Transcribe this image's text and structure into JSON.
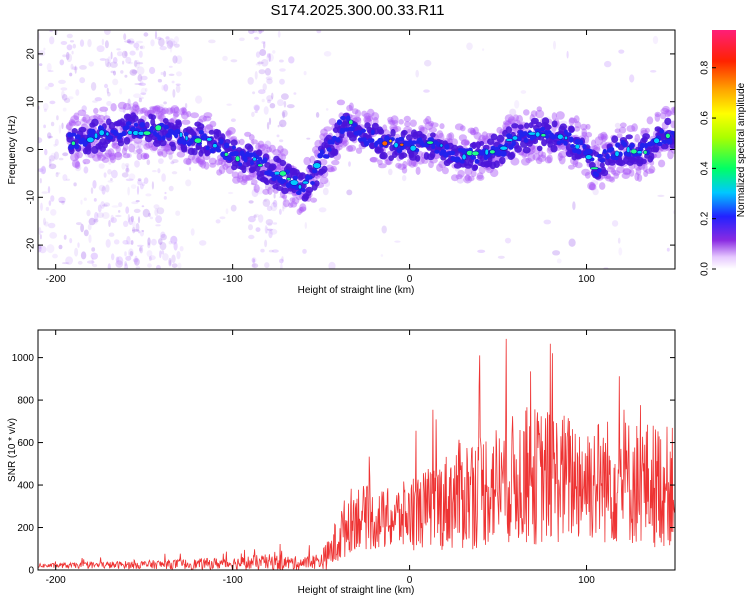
{
  "title": "S174.2025.300.00.33.R11",
  "chart_data": [
    {
      "type": "heatmap",
      "name": "spectrogram",
      "xlabel": "Height of straight line (km)",
      "ylabel": "Frequency (Hz)",
      "xlim": [
        -210,
        150
      ],
      "ylim": [
        -25,
        25
      ],
      "xticks": [
        -200,
        -100,
        0,
        100
      ],
      "yticks": [
        -20,
        -10,
        0,
        10,
        20
      ],
      "ridge": {
        "x": [
          -190,
          -175,
          -160,
          -145,
          -130,
          -115,
          -100,
          -85,
          -70,
          -60,
          -55,
          -50,
          -45,
          -40,
          -35,
          -30,
          -20,
          -10,
          0,
          10,
          20,
          30,
          40,
          50,
          60,
          70,
          80,
          90,
          100,
          105,
          110,
          120,
          130,
          140,
          150
        ],
        "y": [
          2,
          3,
          4,
          4,
          3,
          2,
          -1,
          -3,
          -6,
          -8,
          -6,
          -2,
          0,
          4,
          6,
          4,
          2,
          1,
          1,
          1,
          0,
          -1,
          -1,
          0,
          2,
          3,
          3,
          2,
          0,
          -4,
          -2,
          0,
          -1,
          2,
          4
        ]
      },
      "colorbar": {
        "label": "Normalized spectral amplitude",
        "range": [
          0.0,
          0.95
        ],
        "ticks": [
          "0.0",
          "0.2",
          "0.4",
          "0.6",
          "0.8"
        ]
      }
    },
    {
      "type": "line",
      "name": "snr",
      "xlabel": "Height of straight line (km)",
      "ylabel": "SNR (10 * v/v)",
      "xlim": [
        -210,
        150
      ],
      "ylim": [
        0,
        1130
      ],
      "xticks": [
        -200,
        -100,
        0,
        100
      ],
      "yticks": [
        0,
        200,
        400,
        600,
        800,
        1000
      ],
      "color": "#ee3333",
      "envelope": {
        "x": [
          -210,
          -180,
          -150,
          -120,
          -100,
          -80,
          -60,
          -50,
          -45,
          -40,
          -35,
          -30,
          -20,
          -10,
          0,
          10,
          20,
          30,
          40,
          50,
          60,
          70,
          80,
          90,
          100,
          110,
          120,
          130,
          140,
          150
        ],
        "mean": [
          20,
          22,
          25,
          28,
          32,
          35,
          32,
          45,
          80,
          150,
          220,
          260,
          230,
          240,
          260,
          290,
          320,
          360,
          380,
          410,
          430,
          440,
          440,
          430,
          430,
          420,
          420,
          410,
          400,
          390
        ],
        "spread": [
          10,
          15,
          20,
          25,
          30,
          40,
          30,
          40,
          80,
          130,
          150,
          160,
          140,
          150,
          170,
          190,
          230,
          270,
          280,
          290,
          310,
          330,
          320,
          310,
          300,
          300,
          310,
          300,
          300,
          280
        ]
      }
    }
  ]
}
